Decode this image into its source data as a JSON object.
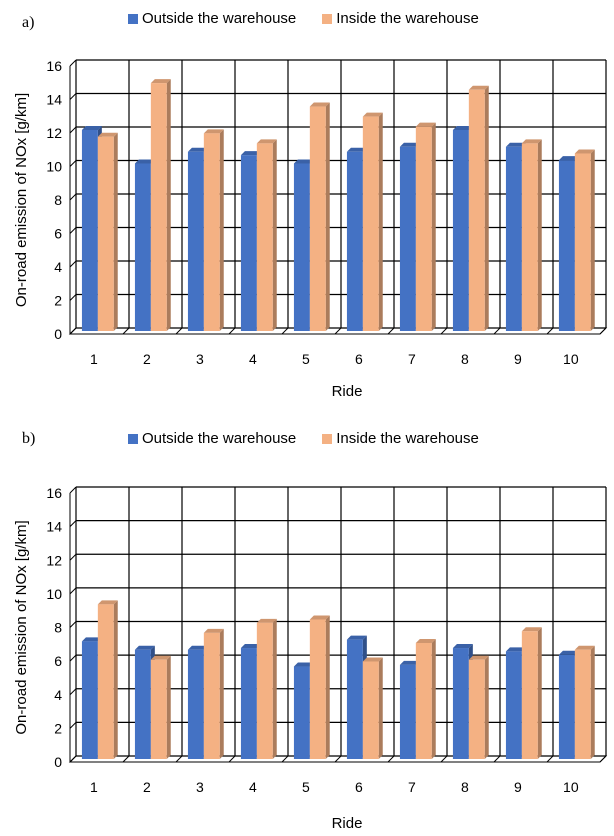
{
  "chart_data": [
    {
      "type": "bar",
      "panel_label": "a)",
      "categories": [
        "1",
        "2",
        "3",
        "4",
        "5",
        "6",
        "7",
        "8",
        "9",
        "10"
      ],
      "series": [
        {
          "name": "Outside the warehouse",
          "color": "#4472c4",
          "values": [
            12.0,
            10.0,
            10.7,
            10.5,
            10.0,
            10.7,
            11.0,
            12.0,
            11.0,
            10.2
          ]
        },
        {
          "name": "Inside the warehouse",
          "color": "#f4b183",
          "values": [
            11.6,
            14.8,
            11.8,
            11.2,
            13.4,
            12.8,
            12.2,
            14.4,
            11.2,
            10.6
          ]
        }
      ],
      "xlabel": "Ride",
      "ylabel": "On-road emission of NOx [g/km]",
      "ylim": [
        0,
        16
      ],
      "yticks": [
        "0",
        "2",
        "4",
        "6",
        "8",
        "10",
        "12",
        "14",
        "16"
      ],
      "grid": true,
      "legend_position": "top"
    },
    {
      "type": "bar",
      "panel_label": "b)",
      "categories": [
        "1",
        "2",
        "3",
        "4",
        "5",
        "6",
        "7",
        "8",
        "9",
        "10"
      ],
      "series": [
        {
          "name": "Outside the warehouse",
          "color": "#4472c4",
          "values": [
            7.0,
            6.5,
            6.5,
            6.6,
            5.5,
            7.1,
            5.6,
            6.6,
            6.4,
            6.2
          ]
        },
        {
          "name": "Inside the warehouse",
          "color": "#f4b183",
          "values": [
            9.2,
            5.9,
            7.5,
            8.1,
            8.3,
            5.8,
            6.9,
            5.9,
            7.6,
            6.5
          ]
        }
      ],
      "xlabel": "Ride",
      "ylabel": "On-road emission of NOx [g/km]",
      "ylim": [
        0,
        16
      ],
      "yticks": [
        "0",
        "2",
        "4",
        "6",
        "8",
        "10",
        "12",
        "14",
        "16"
      ],
      "grid": true,
      "legend_position": "top"
    }
  ]
}
